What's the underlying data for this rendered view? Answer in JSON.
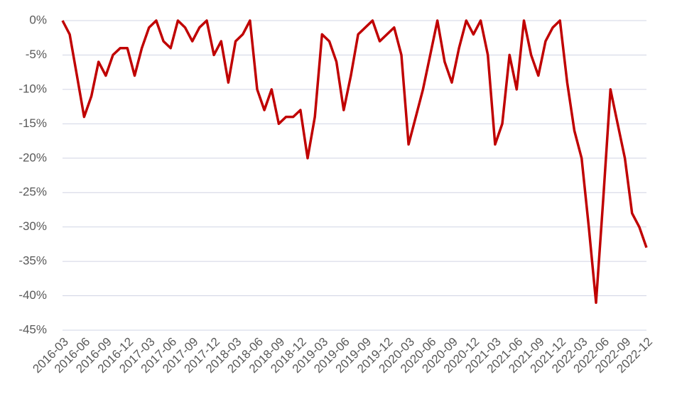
{
  "chart_data": {
    "type": "line",
    "categories": [
      "2016-03",
      null,
      null,
      "2016-06",
      null,
      null,
      "2016-09",
      null,
      null,
      "2016-12",
      null,
      null,
      "2017-03",
      null,
      null,
      "2017-06",
      null,
      null,
      "2017-09",
      null,
      null,
      "2017-12",
      null,
      null,
      "2018-03",
      null,
      null,
      "2018-06",
      null,
      null,
      "2018-09",
      null,
      null,
      "2018-12",
      null,
      null,
      "2019-03",
      null,
      null,
      "2019-06",
      null,
      null,
      "2019-09",
      null,
      null,
      "2019-12",
      null,
      null,
      "2020-03",
      null,
      null,
      "2020-06",
      null,
      null,
      "2020-09",
      null,
      null,
      "2020-12",
      null,
      null,
      "2021-03",
      null,
      null,
      "2021-06",
      null,
      null,
      "2021-09",
      null,
      null,
      "2021-12",
      null,
      null,
      "2022-03",
      null,
      null,
      "2022-06",
      null,
      null,
      "2022-09",
      null,
      null,
      "2022-12"
    ],
    "series": [
      {
        "color": "#c00000",
        "values": [
          0,
          -2,
          -8,
          -14,
          -11,
          -6,
          -8,
          -5,
          -4,
          -4,
          -8,
          -4,
          -1,
          0,
          -3,
          -4,
          0,
          -1,
          -3,
          -1,
          0,
          -5,
          -3,
          -9,
          -3,
          -2,
          0,
          -10,
          -13,
          -10,
          -15,
          -14,
          -14,
          -13,
          -20,
          -14,
          -2,
          -3,
          -6,
          -13,
          -8,
          -2,
          -1,
          0,
          -3,
          -2,
          -1,
          -5,
          -18,
          -14,
          -10,
          -5,
          0,
          -6,
          -9,
          -4,
          0,
          -2,
          0,
          -5,
          -18,
          -15,
          -5,
          -10,
          0,
          -5,
          -8,
          -3,
          -1,
          0,
          -9,
          -16,
          -20,
          -30,
          -41,
          -26,
          -10,
          -15,
          -20,
          -28,
          -30,
          -33
        ]
      }
    ],
    "ylim": [
      -45,
      0
    ],
    "yticks": [
      {
        "value": 0,
        "label": "0%"
      },
      {
        "value": -5,
        "label": "-5%"
      },
      {
        "value": -10,
        "label": "-10%"
      },
      {
        "value": -15,
        "label": "-15%"
      },
      {
        "value": -20,
        "label": "-20%"
      },
      {
        "value": -25,
        "label": "-25%"
      },
      {
        "value": -30,
        "label": "-30%"
      },
      {
        "value": -35,
        "label": "-35%"
      },
      {
        "value": -40,
        "label": "-40%"
      },
      {
        "value": -45,
        "label": "-45%"
      }
    ],
    "grid": true
  }
}
